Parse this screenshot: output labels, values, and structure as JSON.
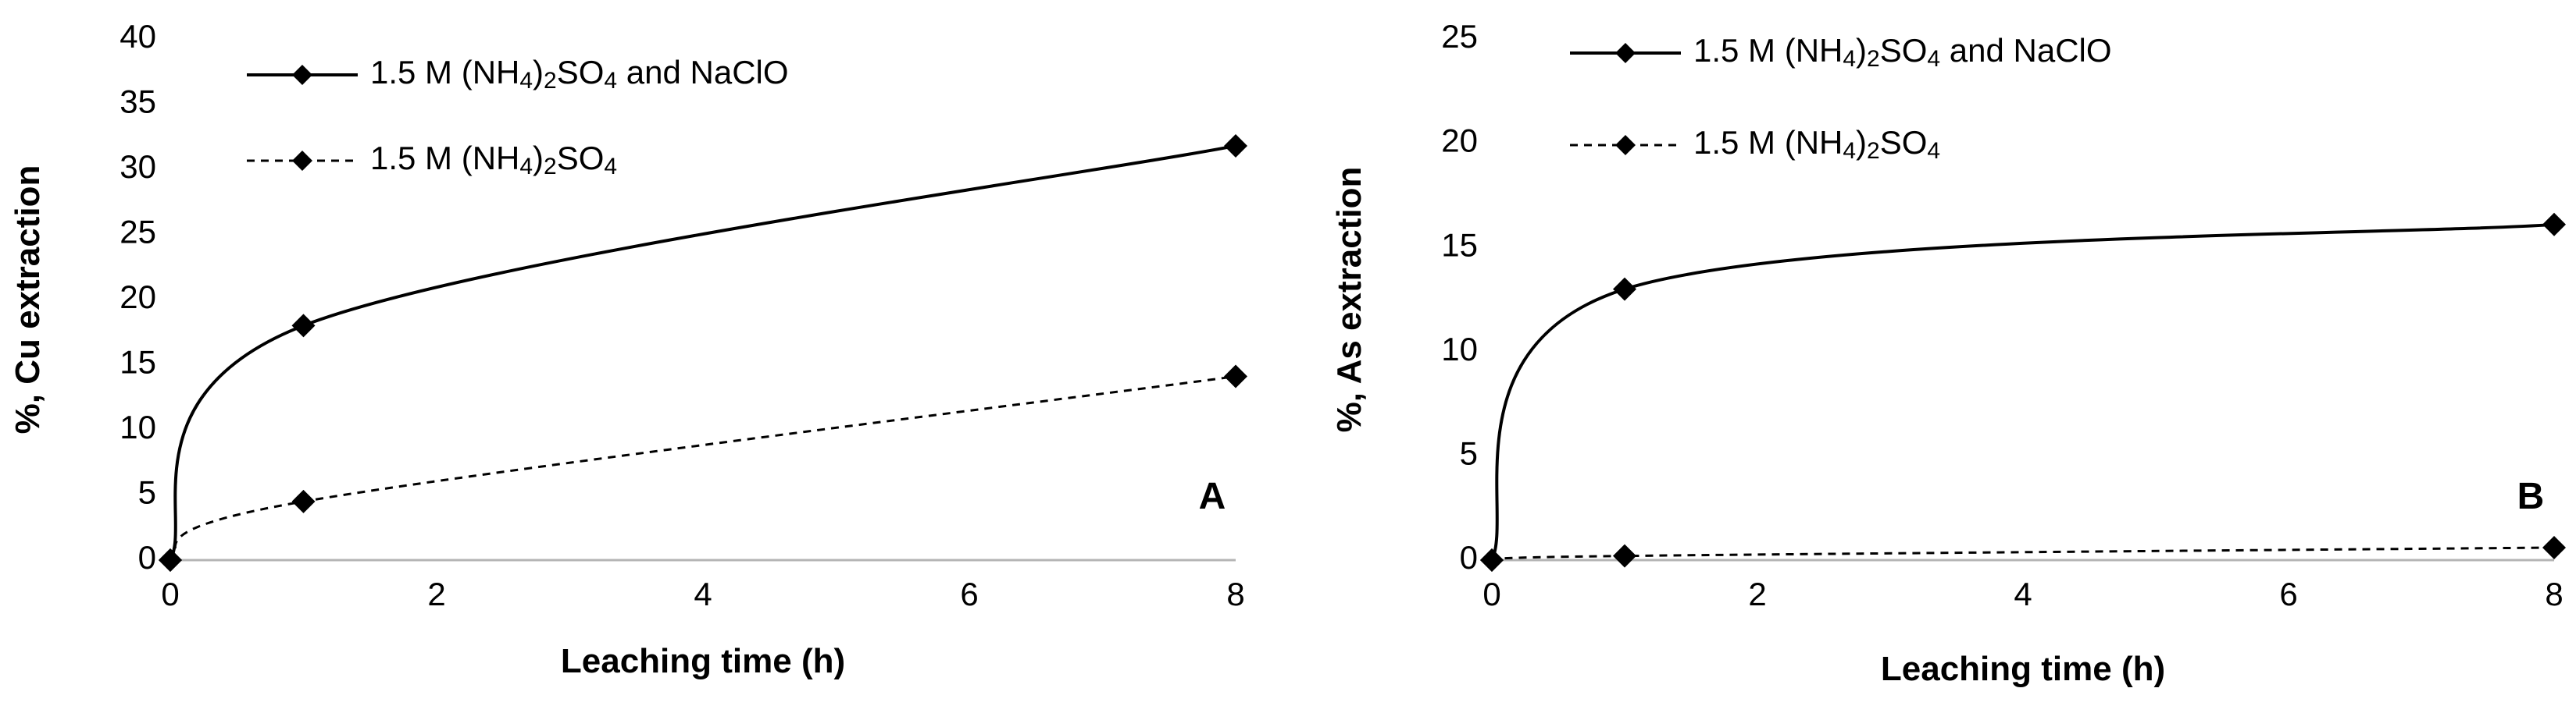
{
  "chart_data": [
    {
      "type": "line",
      "panel_label": "A",
      "xlabel": "Leaching time (h)",
      "ylabel": "%, Cu extraction",
      "xlim": [
        0,
        8
      ],
      "ylim": [
        0,
        40
      ],
      "xticks": [
        "0",
        "2",
        "4",
        "6",
        "8"
      ],
      "yticks": [
        "0",
        "5",
        "10",
        "15",
        "20",
        "25",
        "30",
        "35",
        "40"
      ],
      "grid": false,
      "legend_position": "top-left",
      "series": [
        {
          "name": "1.5 M (NH4)2SO4 and NaClO",
          "name_parts": [
            "1.5 M (NH",
            "4",
            ")",
            "2",
            "SO",
            "4",
            " and NaClO"
          ],
          "line_style": "solid",
          "marker": "diamond",
          "x": [
            0,
            1,
            8
          ],
          "y": [
            0,
            18,
            31.8
          ]
        },
        {
          "name": "1.5 M (NH4)2SO4",
          "name_parts": [
            "1.5 M (NH",
            "4",
            ")",
            "2",
            "SO",
            "4"
          ],
          "line_style": "dashed",
          "marker": "diamond",
          "x": [
            0,
            1,
            8
          ],
          "y": [
            0,
            4.5,
            14.1
          ]
        }
      ]
    },
    {
      "type": "line",
      "panel_label": "B",
      "xlabel": "Leaching time (h)",
      "ylabel": "%, As extraction",
      "xlim": [
        0,
        8
      ],
      "ylim": [
        0,
        25
      ],
      "xticks": [
        "0",
        "2",
        "4",
        "6",
        "8"
      ],
      "yticks": [
        "0",
        "5",
        "10",
        "15",
        "20",
        "25"
      ],
      "grid": false,
      "legend_position": "top-left",
      "series": [
        {
          "name": "1.5 M (NH4)2SO4 and NaClO",
          "name_parts": [
            "1.5 M (NH",
            "4",
            ")",
            "2",
            "SO",
            "4",
            " and NaClO"
          ],
          "line_style": "solid",
          "marker": "diamond",
          "x": [
            0,
            1,
            8
          ],
          "y": [
            0,
            13,
            16.1
          ]
        },
        {
          "name": "1.5 M (NH4)2SO4",
          "name_parts": [
            "1.5 M (NH",
            "4",
            ")",
            "2",
            "SO",
            "4"
          ],
          "line_style": "dashed",
          "marker": "diamond",
          "x": [
            0,
            1,
            8
          ],
          "y": [
            0,
            0.2,
            0.6
          ]
        }
      ]
    }
  ]
}
